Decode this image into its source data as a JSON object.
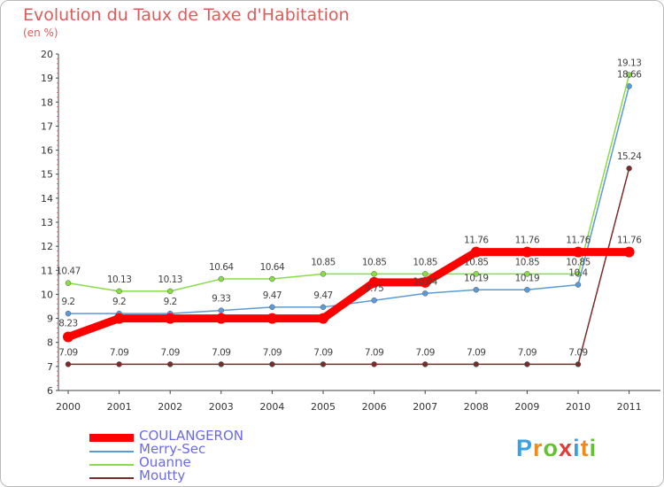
{
  "chart_data": {
    "type": "line",
    "title": "Evolution du Taux de Taxe d'Habitation",
    "subtitle": "(en %)",
    "x": [
      "2000",
      "2001",
      "2002",
      "2003",
      "2004",
      "2005",
      "2006",
      "2007",
      "2008",
      "2009",
      "2010",
      "2011"
    ],
    "ylim": [
      6,
      20
    ],
    "yticks": [
      6,
      7,
      8,
      9,
      10,
      11,
      12,
      13,
      14,
      15,
      16,
      17,
      18,
      19,
      20
    ],
    "grid": false,
    "legend_position": "bottom-left",
    "series": [
      {
        "name": "COULANGERON",
        "color": "#ff0000",
        "values": [
          8.23,
          9,
          9,
          9,
          9,
          9,
          10.5,
          10.5,
          11.76,
          11.76,
          11.76,
          11.76
        ],
        "labels": [
          "8.23",
          "",
          "",
          "",
          "",
          "",
          "",
          "",
          "11.76",
          "11.76",
          "11.76",
          "11.76"
        ]
      },
      {
        "name": "Merry-Sec",
        "color": "#5b9bd5",
        "values": [
          9.2,
          9.2,
          9.2,
          9.33,
          9.47,
          9.47,
          9.75,
          10.04,
          10.19,
          10.19,
          10.4,
          18.66
        ],
        "labels": [
          "9.2",
          "9.2",
          "9.2",
          "9.33",
          "9.47",
          "9.47",
          "9.75",
          "10.04",
          "10.19",
          "10.19",
          "10.4",
          "18.66"
        ]
      },
      {
        "name": "Ouanne",
        "color": "#88dd44",
        "values": [
          10.47,
          10.13,
          10.13,
          10.64,
          10.64,
          10.85,
          10.85,
          10.85,
          10.85,
          10.85,
          10.85,
          19.13
        ],
        "labels": [
          "10.47",
          "10.13",
          "10.13",
          "10.64",
          "10.64",
          "10.85",
          "10.85",
          "10.85",
          "10.85",
          "10.85",
          "10.85",
          "19.13"
        ]
      },
      {
        "name": "Moutty",
        "color": "#7b2b2b",
        "values": [
          7.09,
          7.09,
          7.09,
          7.09,
          7.09,
          7.09,
          7.09,
          7.09,
          7.09,
          7.09,
          7.09,
          15.24
        ],
        "labels": [
          "7.09",
          "7.09",
          "7.09",
          "7.09",
          "7.09",
          "7.09",
          "7.09",
          "7.09",
          "7.09",
          "7.09",
          "7.09",
          "15.24"
        ]
      }
    ]
  },
  "logo": {
    "letters": [
      "P",
      "r",
      "o",
      "x",
      "i",
      "t",
      "i"
    ],
    "colors": [
      "#3aa0e6",
      "#f08a1c",
      "#63c132",
      "#e53935",
      "#3aa0e6",
      "#f08a1c",
      "#63c132"
    ]
  }
}
